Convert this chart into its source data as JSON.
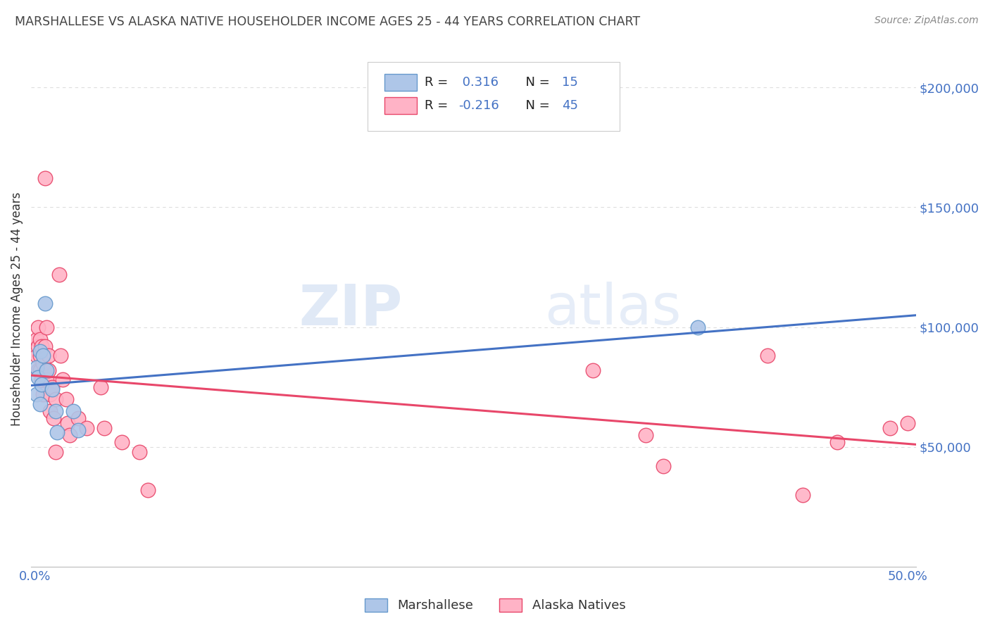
{
  "title": "MARSHALLESE VS ALASKA NATIVE HOUSEHOLDER INCOME AGES 25 - 44 YEARS CORRELATION CHART",
  "source": "Source: ZipAtlas.com",
  "ylabel": "Householder Income Ages 25 - 44 years",
  "ytick_labels": [
    "$50,000",
    "$100,000",
    "$150,000",
    "$200,000"
  ],
  "ytick_values": [
    50000,
    100000,
    150000,
    200000
  ],
  "ymin": 0,
  "ymax": 215000,
  "xmin": -0.002,
  "xmax": 0.505,
  "watermark_zip": "ZIP",
  "watermark_atlas": "atlas",
  "legend_r_blue_label": "R = ",
  "legend_r_blue_val": " 0.316",
  "legend_n_blue_label": "N = ",
  "legend_n_blue_val": "15",
  "legend_r_pink_label": "R = ",
  "legend_r_pink_val": "-0.216",
  "legend_n_pink_label": "N = ",
  "legend_n_pink_val": "45",
  "blue_scatter_x": [
    0.001,
    0.001,
    0.002,
    0.003,
    0.003,
    0.004,
    0.005,
    0.006,
    0.007,
    0.01,
    0.012,
    0.013,
    0.022,
    0.025,
    0.38
  ],
  "blue_scatter_y": [
    83000,
    72000,
    79000,
    90000,
    68000,
    76000,
    88000,
    110000,
    82000,
    74000,
    65000,
    56000,
    65000,
    57000,
    100000
  ],
  "pink_scatter_x": [
    0.001,
    0.001,
    0.002,
    0.002,
    0.002,
    0.003,
    0.003,
    0.003,
    0.004,
    0.004,
    0.005,
    0.005,
    0.006,
    0.006,
    0.007,
    0.007,
    0.008,
    0.008,
    0.009,
    0.009,
    0.01,
    0.011,
    0.012,
    0.012,
    0.014,
    0.015,
    0.016,
    0.018,
    0.019,
    0.02,
    0.025,
    0.03,
    0.038,
    0.04,
    0.05,
    0.06,
    0.065,
    0.32,
    0.35,
    0.36,
    0.42,
    0.44,
    0.46,
    0.49,
    0.5
  ],
  "pink_scatter_y": [
    88000,
    95000,
    100000,
    92000,
    82000,
    95000,
    88000,
    82000,
    92000,
    78000,
    85000,
    72000,
    162000,
    92000,
    100000,
    78000,
    88000,
    82000,
    72000,
    65000,
    75000,
    62000,
    70000,
    48000,
    122000,
    88000,
    78000,
    70000,
    60000,
    55000,
    62000,
    58000,
    75000,
    58000,
    52000,
    48000,
    32000,
    82000,
    55000,
    42000,
    88000,
    30000,
    52000,
    58000,
    60000
  ],
  "blue_line_color": "#4472C4",
  "pink_line_color": "#E8476A",
  "blue_scatter_facecolor": "#AEC6E8",
  "blue_scatter_edgecolor": "#6699CC",
  "pink_scatter_facecolor": "#FFB3C6",
  "pink_scatter_edgecolor": "#E8476A",
  "grid_color": "#DDDDDD",
  "background_color": "#FFFFFF",
  "title_color": "#444444",
  "source_color": "#888888",
  "ytick_color": "#4472C4",
  "xtick_color": "#4472C4",
  "value_color": "#4472C4",
  "label_color": "#333333"
}
